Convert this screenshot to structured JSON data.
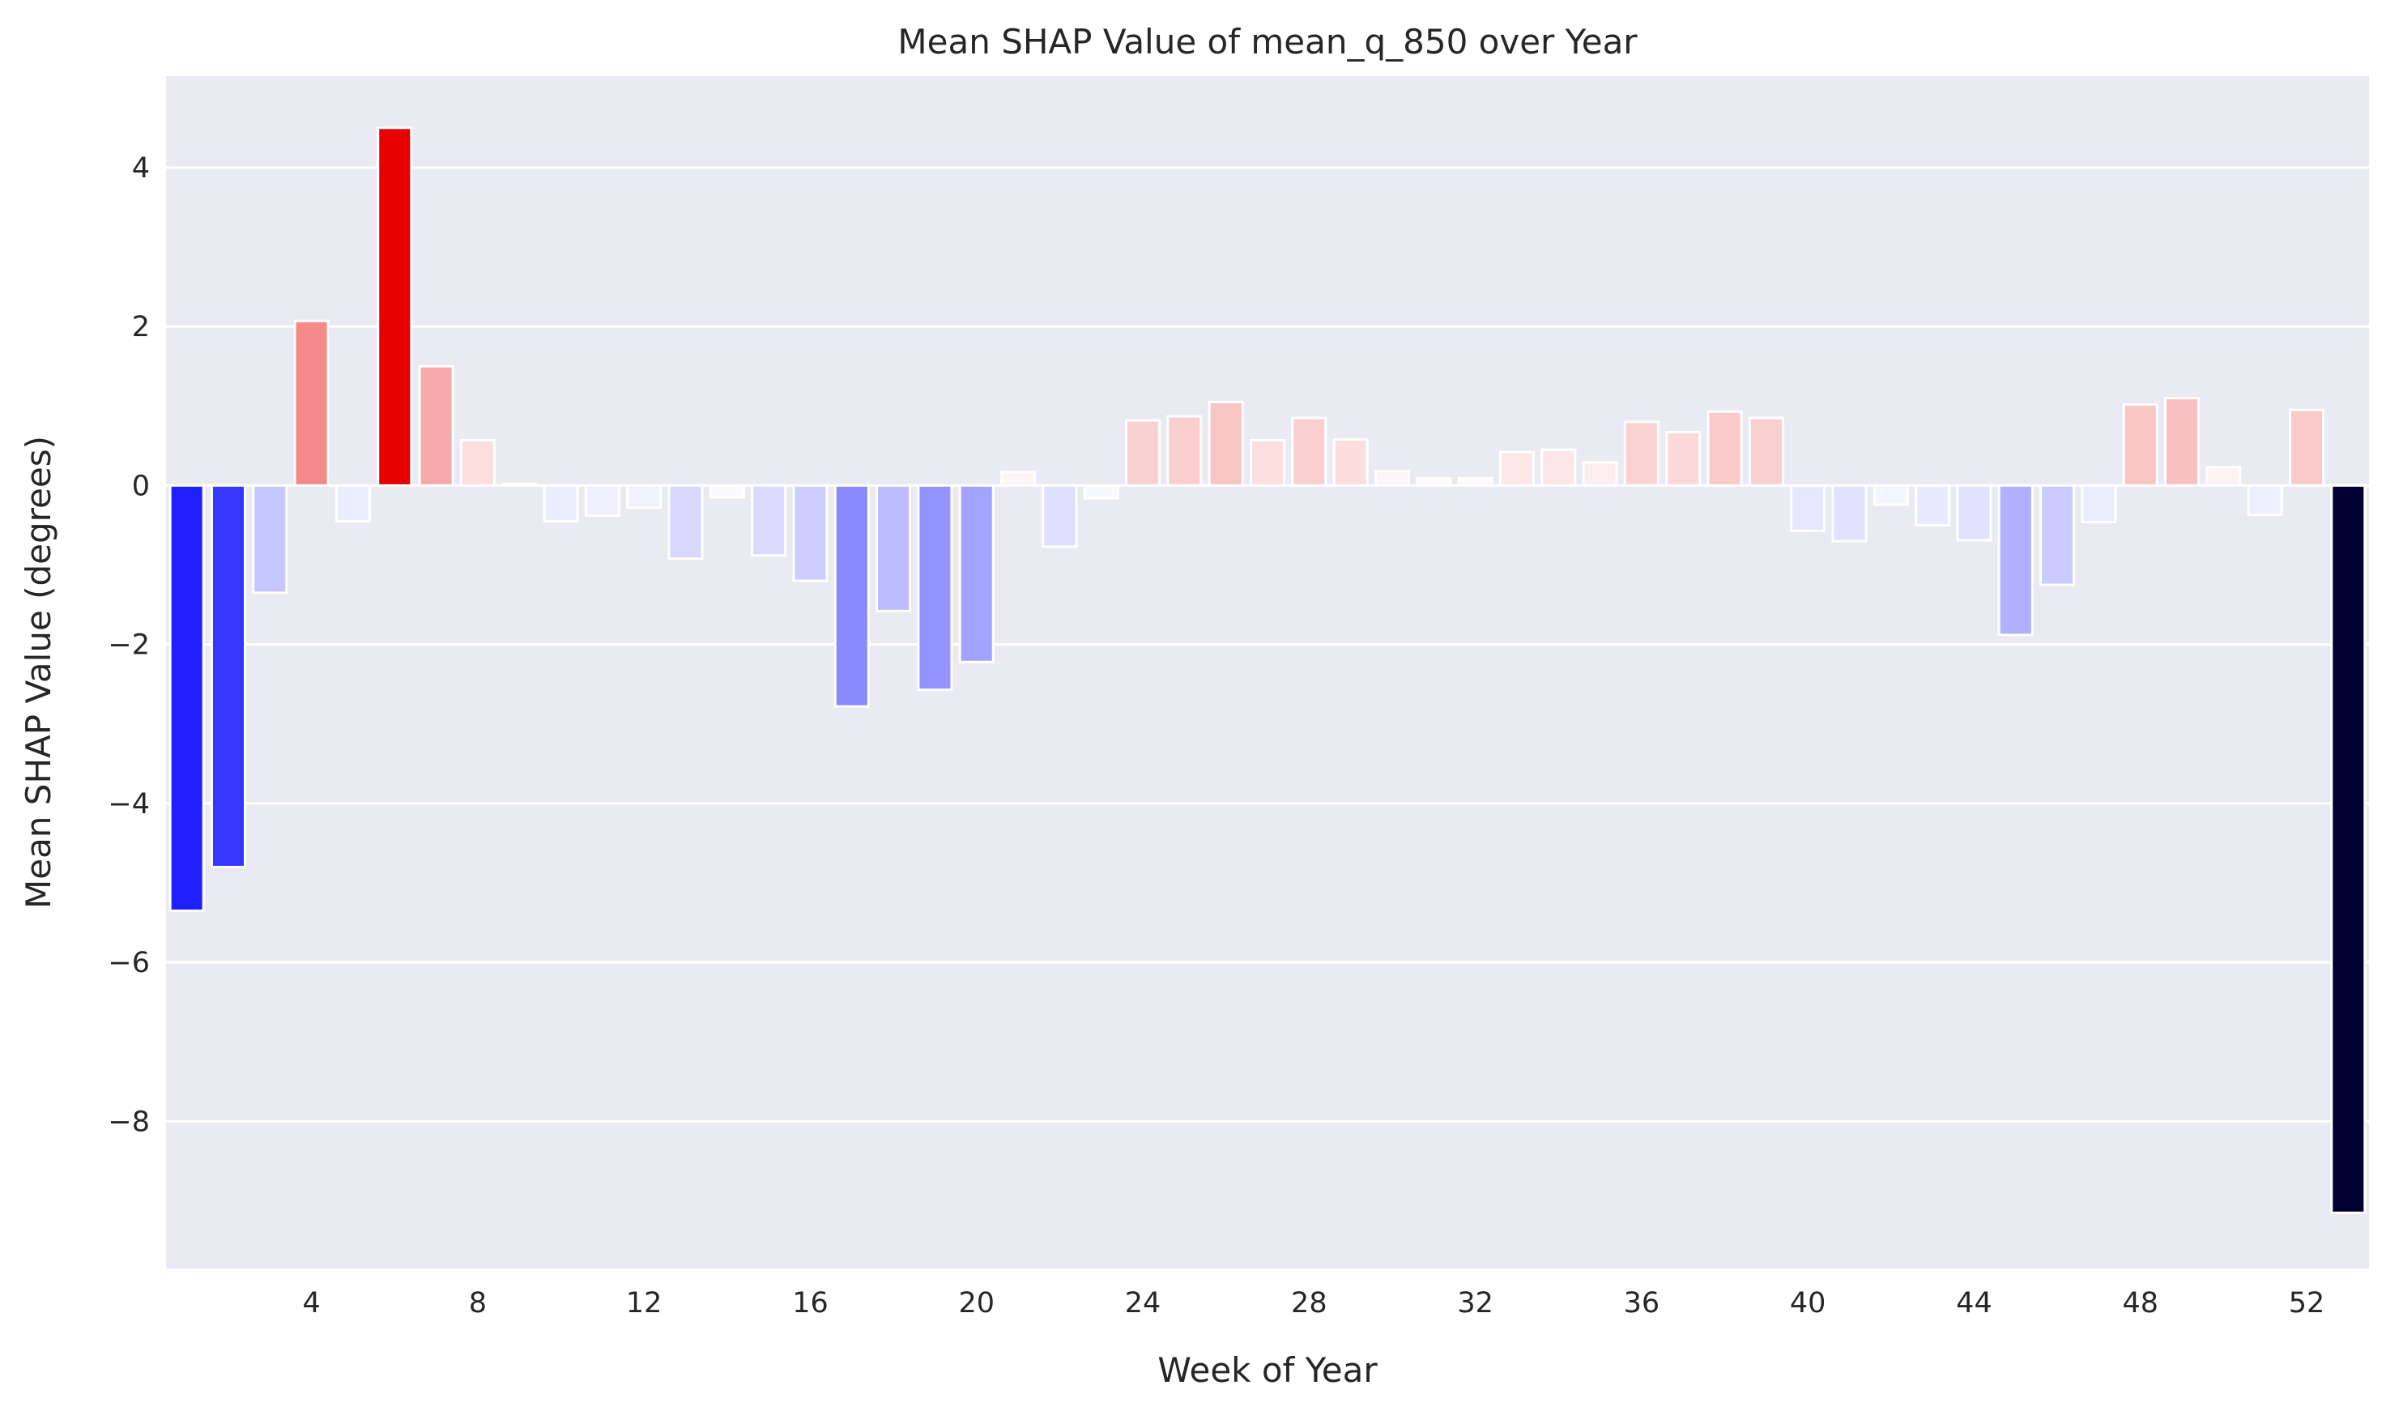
{
  "chart_data": {
    "type": "bar",
    "title": "Mean SHAP Value of mean_q_850 over Year",
    "xlabel": "Week of Year",
    "ylabel": "Mean SHAP Value (degrees)",
    "ylim": [
      -9.85,
      5.15
    ],
    "yticks": [
      -8,
      -6,
      -4,
      -2,
      0,
      2,
      4
    ],
    "ytick_labels": [
      "−8",
      "−6",
      "−4",
      "−2",
      "0",
      "2",
      "4"
    ],
    "xticks": [
      4,
      8,
      12,
      16,
      20,
      24,
      28,
      32,
      36,
      40,
      44,
      48,
      52
    ],
    "xtick_labels": [
      "4",
      "8",
      "12",
      "16",
      "20",
      "24",
      "28",
      "32",
      "36",
      "40",
      "44",
      "48",
      "52"
    ],
    "grid": true,
    "background": "#eaeaf2",
    "positive_color": "#e60000",
    "negative_color": "#0000ff",
    "min_color": "#000033",
    "categories": [
      1,
      2,
      3,
      4,
      5,
      6,
      7,
      8,
      9,
      10,
      11,
      12,
      13,
      14,
      15,
      16,
      17,
      18,
      19,
      20,
      21,
      22,
      23,
      24,
      25,
      26,
      27,
      28,
      29,
      30,
      31,
      32,
      33,
      34,
      35,
      36,
      37,
      38,
      39,
      40,
      41,
      42,
      43,
      44,
      45,
      46,
      47,
      48,
      49,
      50,
      51,
      52,
      53
    ],
    "values": [
      -5.35,
      -4.8,
      -1.35,
      2.07,
      -0.45,
      4.5,
      1.5,
      0.57,
      0.02,
      -0.45,
      -0.38,
      -0.28,
      -0.92,
      -0.15,
      -0.88,
      -1.2,
      -2.78,
      -1.58,
      -2.57,
      -2.22,
      0.17,
      -0.77,
      -0.16,
      0.82,
      0.87,
      1.05,
      0.57,
      0.85,
      0.58,
      0.18,
      0.09,
      0.09,
      0.42,
      0.45,
      0.29,
      0.8,
      0.67,
      0.93,
      0.85,
      -0.57,
      -0.7,
      -0.24,
      -0.5,
      -0.69,
      -1.88,
      -1.25,
      -0.46,
      1.02,
      1.1,
      0.23,
      -0.37,
      0.95,
      -9.15
    ]
  }
}
